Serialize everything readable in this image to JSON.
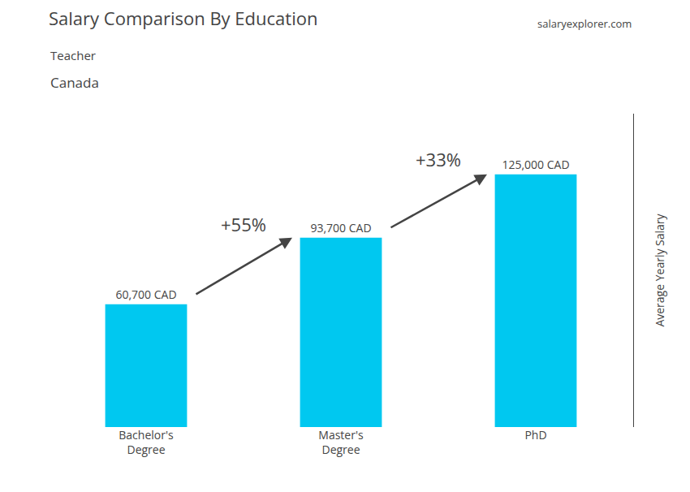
{
  "chart_data": {
    "type": "bar",
    "title": "Salary Comparison By Education",
    "subtitle": [
      "Teacher",
      "Canada"
    ],
    "source": "salaryexplorer.com",
    "categories": [
      "Bachelor's\nDegree",
      "Master's\nDegree",
      "PhD"
    ],
    "values": [
      60700,
      93700,
      125000
    ],
    "value_labels": [
      "60,700 CAD",
      "93,700 CAD",
      "125,000 CAD"
    ],
    "data_labels": true,
    "color": "#00c8f0",
    "ylabel": "Average Yearly Salary",
    "ylim": [
      0,
      155000
    ],
    "tick_labels": "x",
    "grid": false,
    "annotations": [
      {
        "text": "+55%",
        "from": "Bachelor's\nDegree",
        "to": "Master's\nDegree"
      },
      {
        "text": "+33%",
        "from": "Master's\nDegree",
        "to": "PhD"
      }
    ]
  }
}
